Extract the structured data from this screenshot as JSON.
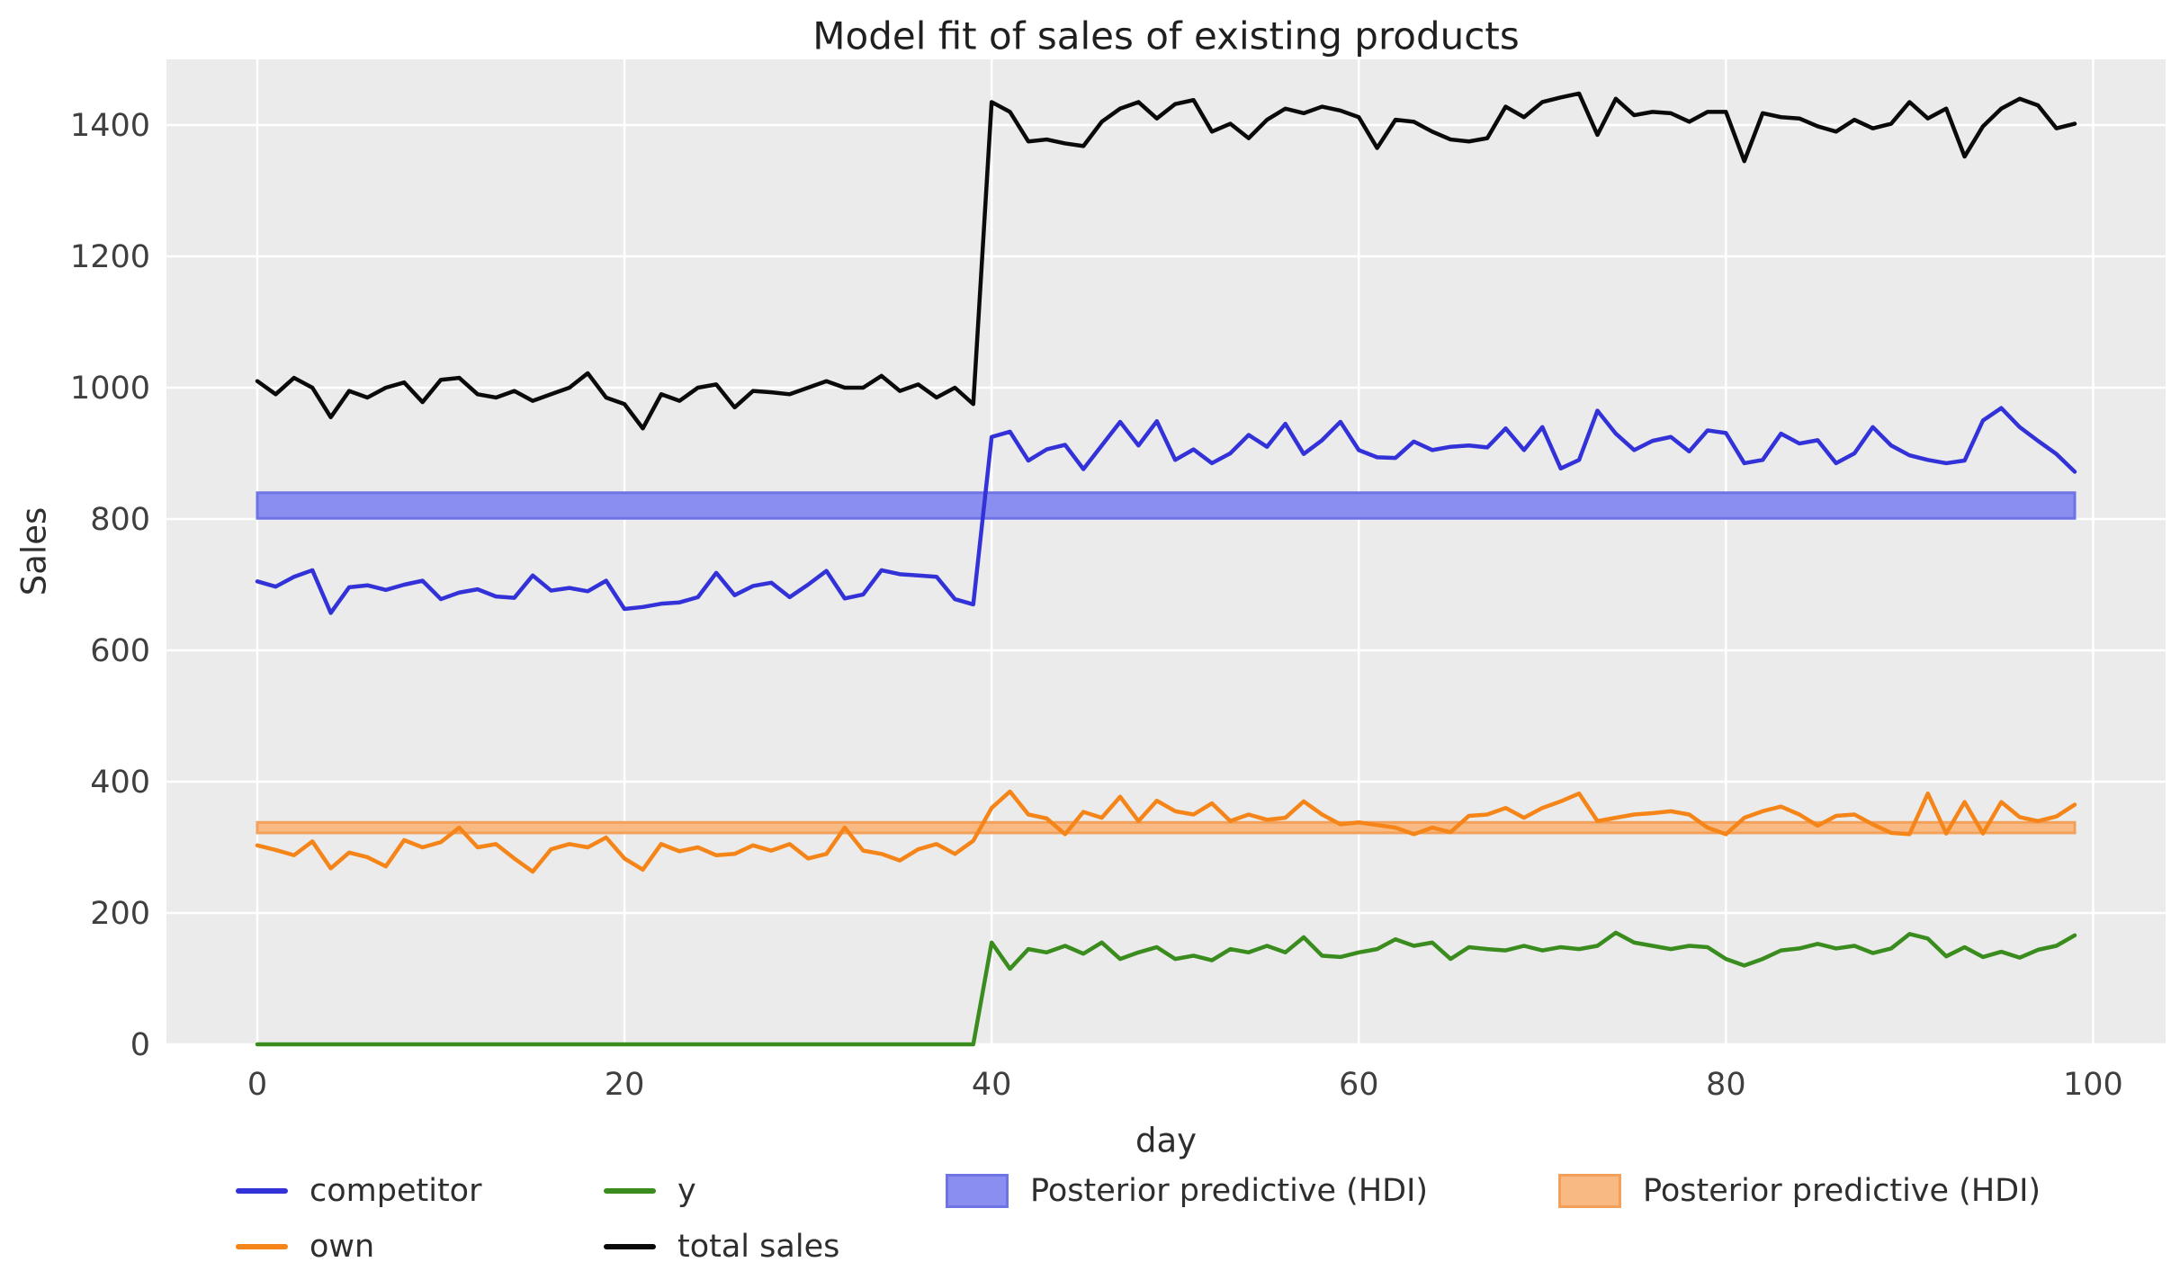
{
  "chart_data": {
    "type": "line",
    "title": "Model fit of sales of existing products",
    "xlabel": "day",
    "ylabel": "Sales",
    "xlim": [
      -4.95,
      103.95
    ],
    "ylim": [
      0,
      1500
    ],
    "x_ticks": [
      0,
      20,
      40,
      60,
      80,
      100
    ],
    "y_ticks": [
      0,
      200,
      400,
      600,
      800,
      1000,
      1200,
      1400
    ],
    "grid": true,
    "plot_bg": "#ebebeb",
    "grid_color": "#ffffff",
    "legend_position": "below",
    "x_range": [
      0,
      99
    ],
    "x_step": 1,
    "series": [
      {
        "id": "competitor",
        "name": "competitor",
        "color": "#3232d8",
        "values": [
          705,
          697,
          712,
          722,
          657,
          696,
          699,
          692,
          700,
          706,
          678,
          688,
          693,
          682,
          680,
          714,
          691,
          695,
          690,
          706,
          663,
          666,
          671,
          673,
          681,
          718,
          684,
          698,
          703,
          681,
          700,
          721,
          679,
          685,
          722,
          716,
          714,
          712,
          678,
          670,
          925,
          933,
          889,
          906,
          913,
          876,
          912,
          948,
          912,
          949,
          890,
          906,
          885,
          900,
          928,
          910,
          945,
          899,
          920,
          948,
          905,
          894,
          893,
          918,
          905,
          910,
          912,
          909,
          938,
          905,
          940,
          877,
          890,
          965,
          930,
          905,
          919,
          925,
          903,
          935,
          931,
          885,
          890,
          930,
          915,
          920,
          885,
          900,
          940,
          912,
          897,
          890,
          885,
          889,
          950,
          969,
          940,
          919,
          899,
          872
        ]
      },
      {
        "id": "own",
        "name": "own",
        "color": "#f58518",
        "values": [
          303,
          296,
          288,
          309,
          268,
          292,
          285,
          271,
          311,
          300,
          308,
          330,
          300,
          305,
          283,
          263,
          297,
          305,
          300,
          315,
          283,
          266,
          305,
          294,
          300,
          288,
          290,
          303,
          295,
          305,
          283,
          290,
          330,
          295,
          290,
          280,
          297,
          305,
          290,
          310,
          360,
          385,
          350,
          344,
          320,
          354,
          345,
          377,
          340,
          371,
          355,
          350,
          367,
          340,
          350,
          342,
          345,
          370,
          350,
          335,
          338,
          334,
          330,
          320,
          330,
          323,
          348,
          350,
          360,
          345,
          360,
          370,
          382,
          340,
          345,
          350,
          352,
          355,
          350,
          330,
          320,
          345,
          355,
          362,
          350,
          333,
          348,
          350,
          335,
          322,
          320,
          382,
          321,
          369,
          321,
          369,
          346,
          340,
          347,
          365
        ]
      },
      {
        "id": "y",
        "name": "y",
        "color": "#3a8c1e",
        "values": [
          0,
          0,
          0,
          0,
          0,
          0,
          0,
          0,
          0,
          0,
          0,
          0,
          0,
          0,
          0,
          0,
          0,
          0,
          0,
          0,
          0,
          0,
          0,
          0,
          0,
          0,
          0,
          0,
          0,
          0,
          0,
          0,
          0,
          0,
          0,
          0,
          0,
          0,
          0,
          0,
          155,
          115,
          145,
          140,
          150,
          138,
          155,
          130,
          140,
          148,
          130,
          135,
          128,
          145,
          140,
          150,
          140,
          163,
          135,
          133,
          140,
          145,
          160,
          150,
          155,
          130,
          148,
          145,
          143,
          150,
          143,
          148,
          145,
          150,
          170,
          155,
          150,
          145,
          150,
          148,
          130,
          120,
          130,
          143,
          146,
          153,
          146,
          150,
          139,
          146,
          168,
          161,
          134,
          148,
          133,
          141,
          132,
          144,
          150,
          166
        ]
      },
      {
        "id": "total-sales",
        "name": "total sales",
        "color": "#0a0a0a",
        "values": [
          1010,
          990,
          1015,
          1000,
          955,
          995,
          985,
          1000,
          1008,
          978,
          1012,
          1015,
          990,
          985,
          995,
          980,
          990,
          1000,
          1022,
          985,
          975,
          938,
          990,
          980,
          1000,
          1005,
          970,
          995,
          993,
          990,
          1000,
          1010,
          1000,
          1000,
          1018,
          995,
          1005,
          985,
          1000,
          975,
          1435,
          1420,
          1375,
          1378,
          1372,
          1368,
          1405,
          1425,
          1435,
          1410,
          1432,
          1438,
          1390,
          1402,
          1380,
          1408,
          1425,
          1418,
          1428,
          1422,
          1412,
          1365,
          1408,
          1405,
          1390,
          1378,
          1375,
          1380,
          1428,
          1412,
          1435,
          1442,
          1448,
          1385,
          1440,
          1415,
          1420,
          1418,
          1405,
          1420,
          1420,
          1345,
          1418,
          1412,
          1410,
          1398,
          1390,
          1408,
          1395,
          1402,
          1435,
          1410,
          1425,
          1352,
          1398,
          1425,
          1440,
          1430,
          1395,
          1402
        ]
      }
    ],
    "bands": [
      {
        "id": "blue",
        "name": "Posterior predictive (HDI)",
        "lo": 801,
        "hi": 840,
        "x_start": 0,
        "x_end": 99,
        "fill": "#8a8eee",
        "edge": "#6e73e6"
      },
      {
        "id": "orange",
        "name": "Posterior predictive (HDI)",
        "lo": 322,
        "hi": 338,
        "x_start": 0,
        "x_end": 99,
        "fill": "#f8ba82",
        "edge": "#f3a05a"
      }
    ]
  },
  "styles": {
    "fig_bg": "#ffffff",
    "plot_bg": "#ebebeb",
    "grid_color": "#ffffff",
    "tick_color": "#3f3f3f",
    "title_color": "#1f1f1f",
    "text_color": "#2e2e2e"
  },
  "legend": {
    "items": [
      {
        "label": "competitor",
        "kind": "line",
        "color": "#3232d8"
      },
      {
        "label": "own",
        "kind": "line",
        "color": "#f58518"
      },
      {
        "label": "y",
        "kind": "line",
        "color": "#3a8c1e"
      },
      {
        "label": "total sales",
        "kind": "line",
        "color": "#0a0a0a"
      },
      {
        "label": "Posterior predictive (HDI)",
        "kind": "patch",
        "fill": "#8a8eee",
        "edge": "#6e73e6"
      },
      {
        "label": "Posterior predictive (HDI)",
        "kind": "patch",
        "fill": "#f8ba82",
        "edge": "#f3a05a"
      }
    ]
  }
}
